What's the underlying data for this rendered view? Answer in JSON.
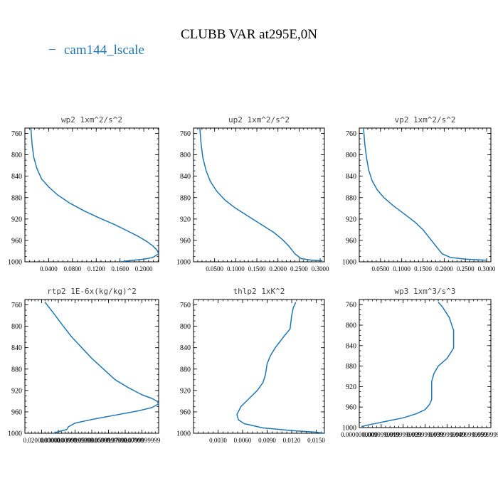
{
  "figure": {
    "title": "CLUBB VAR at295E,0N",
    "legend": {
      "label": "cam144_lscale",
      "marker": "−",
      "color": "#1f77b4"
    }
  },
  "chart_data": [
    {
      "type": "line",
      "title": "wp2   1xm^2/s^2",
      "ylim": [
        1000,
        750
      ],
      "xlim": [
        0,
        0.225
      ],
      "yticks": [
        760,
        800,
        840,
        880,
        920,
        960,
        1000
      ],
      "xticks": [
        0.04,
        0.08,
        0.12,
        0.16,
        0.2
      ],
      "xtick_labels": [
        "0.0400",
        "0.0800",
        "0.1200",
        "0.1600",
        "0.2000"
      ],
      "series": [
        {
          "color": "#1f77b4",
          "x": [
            0.01,
            0.012,
            0.015,
            0.02,
            0.028,
            0.04,
            0.055,
            0.075,
            0.1,
            0.125,
            0.15,
            0.172,
            0.19,
            0.205,
            0.215,
            0.222,
            0.225,
            0.215,
            0.2,
            0.175,
            0.16
          ],
          "y": [
            750,
            780,
            805,
            825,
            845,
            860,
            875,
            890,
            905,
            918,
            930,
            942,
            952,
            962,
            970,
            978,
            985,
            992,
            995,
            998,
            1000
          ]
        }
      ]
    },
    {
      "type": "line",
      "title": "up2   1xm^2/s^2",
      "ylim": [
        1000,
        750
      ],
      "xlim": [
        0,
        0.31
      ],
      "yticks": [
        760,
        800,
        840,
        880,
        920,
        960,
        1000
      ],
      "xticks": [
        0.05,
        0.1,
        0.15,
        0.2,
        0.25,
        0.3
      ],
      "xtick_labels": [
        "0.0500",
        "0.1000",
        "0.1500",
        "0.2000",
        "0.2500",
        "0.3000"
      ],
      "series": [
        {
          "color": "#1f77b4",
          "x": [
            0.015,
            0.018,
            0.022,
            0.03,
            0.04,
            0.055,
            0.075,
            0.1,
            0.13,
            0.16,
            0.19,
            0.21,
            0.225,
            0.24,
            0.255,
            0.28,
            0.305
          ],
          "y": [
            750,
            780,
            805,
            830,
            850,
            868,
            885,
            900,
            915,
            930,
            945,
            958,
            970,
            985,
            994,
            997,
            998
          ]
        }
      ]
    },
    {
      "type": "line",
      "title": "vp2   1xm^2/s^2",
      "ylim": [
        1000,
        750
      ],
      "xlim": [
        0,
        0.31
      ],
      "yticks": [
        760,
        800,
        840,
        880,
        920,
        960,
        1000
      ],
      "xticks": [
        0.05,
        0.1,
        0.15,
        0.2,
        0.25,
        0.3
      ],
      "xtick_labels": [
        "0.0500",
        "0.1000",
        "0.1500",
        "0.2000",
        "0.2500",
        "0.3000"
      ],
      "series": [
        {
          "color": "#1f77b4",
          "x": [
            0.01,
            0.013,
            0.017,
            0.022,
            0.03,
            0.042,
            0.058,
            0.08,
            0.105,
            0.13,
            0.15,
            0.165,
            0.18,
            0.195,
            0.215,
            0.25,
            0.3
          ],
          "y": [
            750,
            780,
            805,
            828,
            848,
            865,
            880,
            895,
            910,
            925,
            940,
            955,
            970,
            985,
            992,
            995,
            997
          ]
        }
      ]
    },
    {
      "type": "line",
      "title": "rtp2   1E-6x(kg/kg)^2",
      "ylim": [
        1000,
        750
      ],
      "xlim": [
        1e-05,
        9e-05
      ],
      "yticks": [
        760,
        800,
        840,
        880,
        920,
        960,
        1000
      ],
      "xticks": [
        2e-05,
        3e-05,
        4e-05,
        5e-05,
        6e-05,
        7e-05,
        8e-05
      ],
      "xtick_labels": [
        "0.0200000000",
        "0.0300000000",
        "0.0399999999",
        "0.0500000000",
        "0.0599999999",
        "0.0700000000",
        "0.0799999999"
      ],
      "series": [
        {
          "color": "#1f77b4",
          "x": [
            2.2e-05,
            2.7e-05,
            3.3e-05,
            3.8e-05,
            4.4e-05,
            5e-05,
            5.7e-05,
            6.4e-05,
            7.2e-05,
            8e-05,
            8.6e-05,
            8.9e-05,
            9e-05,
            8.6e-05,
            7.8e-05,
            6.6e-05,
            5.2e-05,
            4e-05,
            3.6e-05,
            3.5e-05,
            3e-05,
            2.7e-05
          ],
          "y": [
            755,
            775,
            800,
            820,
            840,
            860,
            880,
            900,
            915,
            928,
            935,
            940,
            945,
            952,
            958,
            965,
            973,
            981,
            988,
            993,
            997,
            1000
          ]
        }
      ]
    },
    {
      "type": "line",
      "title": "thlp2   1xK^2",
      "ylim": [
        1000,
        750
      ],
      "xlim": [
        0.0,
        0.016
      ],
      "yticks": [
        760,
        800,
        840,
        880,
        920,
        960,
        1000
      ],
      "xticks": [
        0.003,
        0.006,
        0.009,
        0.012,
        0.015
      ],
      "xtick_labels": [
        "0.0030",
        "0.0060",
        "0.0090",
        "0.0120",
        "0.0150"
      ],
      "series": [
        {
          "color": "#1f77b4",
          "x": [
            0.0125,
            0.0122,
            0.012,
            0.0118,
            0.011,
            0.01,
            0.0094,
            0.009,
            0.0088,
            0.0085,
            0.0078,
            0.0068,
            0.0058,
            0.0053,
            0.0055,
            0.0062,
            0.0085,
            0.012,
            0.015,
            0.016
          ],
          "y": [
            755,
            765,
            780,
            805,
            820,
            840,
            855,
            870,
            890,
            905,
            920,
            935,
            950,
            965,
            975,
            982,
            990,
            995,
            998,
            1000
          ]
        }
      ]
    },
    {
      "type": "line",
      "title": "wp3   1xm^3/s^3",
      "ylim": [
        1000,
        750
      ],
      "xlim": [
        0.0,
        0.06
      ],
      "yticks": [
        760,
        800,
        840,
        880,
        920,
        960,
        1000
      ],
      "xticks": [
        0.0,
        0.0099999999,
        0.0199999999,
        0.0299999999,
        0.0399999999,
        0.0499999999,
        0.0599999999
      ],
      "xtick_labels": [
        "0.0000000000",
        "0.0099999999",
        "0.0199999999",
        "0.0299999999",
        "0.0399999999",
        "0.0499999999",
        "0.0599999999"
      ],
      "series": [
        {
          "color": "#1f77b4",
          "x": [
            0.036,
            0.038,
            0.041,
            0.043,
            0.043,
            0.043,
            0.04,
            0.036,
            0.034,
            0.033,
            0.033,
            0.033,
            0.033,
            0.032,
            0.03,
            0.026,
            0.02,
            0.012,
            0.005,
            0.001
          ],
          "y": [
            755,
            765,
            785,
            810,
            835,
            845,
            865,
            880,
            895,
            910,
            925,
            935,
            945,
            955,
            965,
            973,
            981,
            988,
            994,
            998
          ]
        }
      ]
    }
  ]
}
